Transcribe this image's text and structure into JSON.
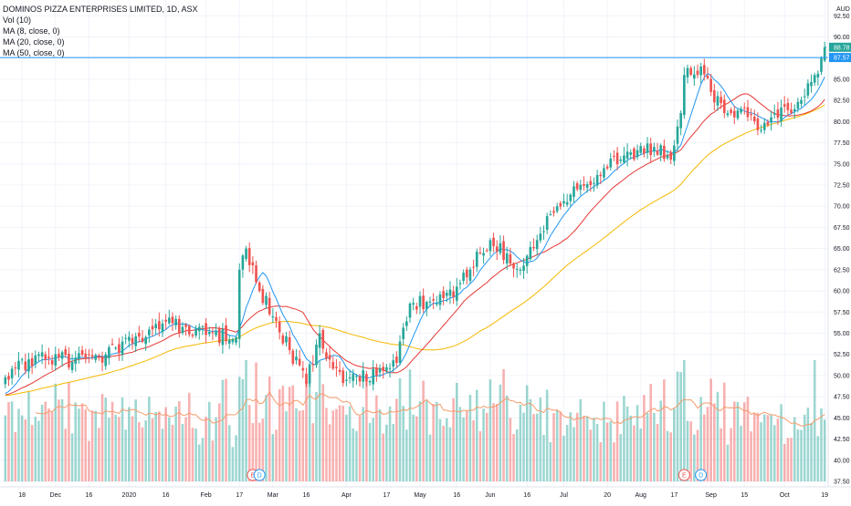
{
  "header": {
    "title": "DOMINOS PIZZA ENTERPRISES LIMITED, 1D, ASX",
    "indicators": [
      "Vol (10)",
      "MA (8, close, 0)",
      "MA (20, close, 0)",
      "MA (50, close, 0)"
    ]
  },
  "colors": {
    "up": "#26a69a",
    "down": "#ef5350",
    "ma8": "#2196f3",
    "ma20": "#e53935",
    "ma50": "#f5b800",
    "volMa": "#f59c6b",
    "priceLine": "#2196f3"
  },
  "chart_data": {
    "type": "candlestick",
    "title": "DOMINOS PIZZA ENTERPRISES LIMITED, 1D, ASX",
    "currency": "AUD",
    "y_axis": {
      "ticks": [
        "92.50",
        "90.00",
        "87.50",
        "85.00",
        "82.50",
        "80.00",
        "77.50",
        "75.00",
        "72.50",
        "70.00",
        "67.50",
        "65.00",
        "62.50",
        "60.00",
        "57.50",
        "55.00",
        "52.50",
        "50.00",
        "47.50",
        "45.00",
        "42.50",
        "40.00",
        "37.50"
      ],
      "range": [
        37.5,
        93.5
      ]
    },
    "x_axis": {
      "ticks": [
        "18",
        "Dec",
        "16",
        "2020",
        "16",
        "Feb",
        "17",
        "Mar",
        "16",
        "Apr",
        "17",
        "May",
        "16",
        "Jun",
        "16",
        "Jul",
        "20",
        "Aug",
        "17",
        "Sep",
        "15",
        "Oct",
        "19"
      ]
    },
    "price_labels": {
      "last": "88.78",
      "reference": "87.57"
    },
    "last_price": 88.78,
    "reference_price": 87.57,
    "earnings_markers": [
      {
        "label": "E",
        "date": "Feb 21"
      },
      {
        "label": "D",
        "date": "Feb 25"
      },
      {
        "label": "E",
        "date": "Aug 20"
      },
      {
        "label": "D",
        "date": "Aug 27"
      }
    ],
    "close_anchors": [
      {
        "date": "Nov 11",
        "close": 49.8
      },
      {
        "date": "Nov 25",
        "close": 52.5
      },
      {
        "date": "Dec 9",
        "close": 51.6
      },
      {
        "date": "Dec 23",
        "close": 52.5
      },
      {
        "date": "Jan 6",
        "close": 54.6
      },
      {
        "date": "Jan 20",
        "close": 56.2
      },
      {
        "date": "Feb 3",
        "close": 54.8
      },
      {
        "date": "Feb 14",
        "close": 54.5
      },
      {
        "date": "Feb 17",
        "close": 62.5
      },
      {
        "date": "Feb 19",
        "close": 65.0
      },
      {
        "date": "Feb 24",
        "close": 61.0
      },
      {
        "date": "Mar 2",
        "close": 57.0
      },
      {
        "date": "Mar 9",
        "close": 53.0
      },
      {
        "date": "Mar 16",
        "close": 49.0
      },
      {
        "date": "Mar 20",
        "close": 55.0
      },
      {
        "date": "Mar 24",
        "close": 52.0
      },
      {
        "date": "Apr 1",
        "close": 49.5
      },
      {
        "date": "Apr 14",
        "close": 50.0
      },
      {
        "date": "Apr 22",
        "close": 51.5
      },
      {
        "date": "Apr 28",
        "close": 58.5
      },
      {
        "date": "May 8",
        "close": 58.5
      },
      {
        "date": "May 18",
        "close": 60.5
      },
      {
        "date": "Jun 1",
        "close": 66.0
      },
      {
        "date": "Jun 12",
        "close": 62.5
      },
      {
        "date": "Jun 19",
        "close": 66.0
      },
      {
        "date": "Jun 29",
        "close": 70.0
      },
      {
        "date": "Jul 7",
        "close": 72.0
      },
      {
        "date": "Jul 17",
        "close": 74.5
      },
      {
        "date": "Jul 27",
        "close": 76.0
      },
      {
        "date": "Aug 7",
        "close": 77.0
      },
      {
        "date": "Aug 14",
        "close": 75.5
      },
      {
        "date": "Aug 19",
        "close": 81.0
      },
      {
        "date": "Aug 20",
        "close": 85.5
      },
      {
        "date": "Aug 27",
        "close": 86.5
      },
      {
        "date": "Sep 1",
        "close": 83.5
      },
      {
        "date": "Sep 7",
        "close": 81.0
      },
      {
        "date": "Sep 14",
        "close": 81.5
      },
      {
        "date": "Sep 21",
        "close": 79.0
      },
      {
        "date": "Sep 28",
        "close": 81.0
      },
      {
        "date": "Oct 5",
        "close": 81.0
      },
      {
        "date": "Oct 9",
        "close": 83.0
      },
      {
        "date": "Oct 14",
        "close": 85.5
      },
      {
        "date": "Oct 16",
        "close": 87.5
      },
      {
        "date": "Oct 19",
        "close": 88.78
      }
    ],
    "series": [
      {
        "name": "MA (8, close, 0)",
        "kind": "moving-average",
        "period": 8
      },
      {
        "name": "MA (20, close, 0)",
        "kind": "moving-average",
        "period": 20
      },
      {
        "name": "MA (50, close, 0)",
        "kind": "moving-average",
        "period": 50
      },
      {
        "name": "Vol (10)",
        "kind": "volume",
        "period": 10
      }
    ],
    "grid": true,
    "legend_position": "top-left"
  }
}
